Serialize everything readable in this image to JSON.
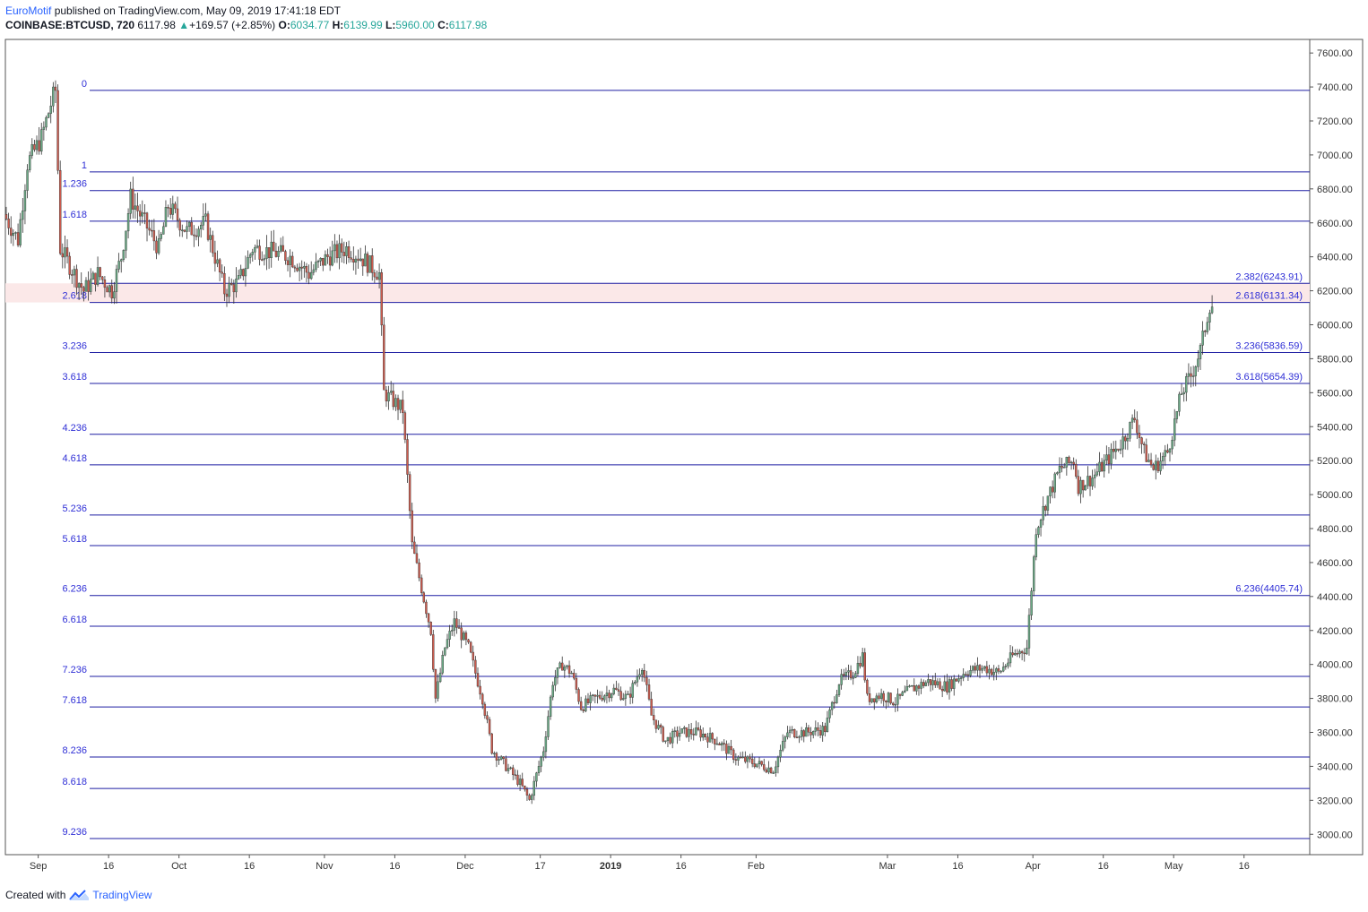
{
  "header": {
    "author": "EuroMotif",
    "published": "published on TradingView.com, May 09, 2019 17:41:18 EDT",
    "symbol": "COINBASE:BTCUSD, 720",
    "last": "6117.98",
    "change_arrow": "▲",
    "change": "+169.57 (+2.85%)",
    "o_label": "O:",
    "o_value": "6034.77",
    "h_label": "H:",
    "h_value": "6139.99",
    "l_label": "L:",
    "l_value": "5960.00",
    "c_label": "C:",
    "c_value": "6117.98"
  },
  "footer": {
    "created_with": "Created with",
    "brand": "TradingView",
    "logo_icon": "tradingview-logo-icon"
  },
  "colors": {
    "up": "#6aa985",
    "down": "#cc5b4e",
    "fib_line": "#1f1fa3",
    "fib_text": "#2f2fd6",
    "zone_fill": "#fbe8e8"
  },
  "chart_data": {
    "type": "candlestick",
    "symbol": "COINBASE:BTCUSD",
    "interval": "720",
    "y_axis": {
      "ticks": [
        3000,
        3200,
        3400,
        3600,
        3800,
        4000,
        4200,
        4400,
        4600,
        4800,
        5000,
        5200,
        5400,
        5600,
        5800,
        6000,
        6200,
        6400,
        6600,
        6800,
        7000,
        7200,
        7400,
        7600
      ],
      "tick_labels": [
        "3000.00",
        "3200.00",
        "3400.00",
        "3600.00",
        "3800.00",
        "4000.00",
        "4200.00",
        "4400.00",
        "4600.00",
        "4800.00",
        "5000.00",
        "5200.00",
        "5400.00",
        "5600.00",
        "5800.00",
        "6000.00",
        "6200.00",
        "6400.00",
        "6600.00",
        "6800.00",
        "7000.00",
        "7200.00",
        "7400.00",
        "7600.00"
      ],
      "range": [
        2880,
        7680
      ]
    },
    "x_axis": {
      "ticks": [
        {
          "label": "Sep",
          "date": "2018-09-01",
          "bold": false
        },
        {
          "label": "16",
          "date": "2018-09-16",
          "bold": false
        },
        {
          "label": "Oct",
          "date": "2018-10-01",
          "bold": false
        },
        {
          "label": "16",
          "date": "2018-10-16",
          "bold": false
        },
        {
          "label": "Nov",
          "date": "2018-11-01",
          "bold": false
        },
        {
          "label": "16",
          "date": "2018-11-16",
          "bold": false
        },
        {
          "label": "Dec",
          "date": "2018-12-01",
          "bold": false
        },
        {
          "label": "17",
          "date": "2018-12-17",
          "bold": false
        },
        {
          "label": "2019",
          "date": "2019-01-01",
          "bold": true
        },
        {
          "label": "16",
          "date": "2019-01-16",
          "bold": false
        },
        {
          "label": "Feb",
          "date": "2019-02-01",
          "bold": false
        },
        {
          "label": "Mar",
          "date": "2019-03-01",
          "bold": false
        },
        {
          "label": "16",
          "date": "2019-03-16",
          "bold": false
        },
        {
          "label": "Apr",
          "date": "2019-04-01",
          "bold": false
        },
        {
          "label": "16",
          "date": "2019-04-16",
          "bold": false
        },
        {
          "label": "May",
          "date": "2019-05-01",
          "bold": false
        },
        {
          "label": "16",
          "date": "2019-05-16",
          "bold": false
        }
      ],
      "range": [
        "2018-08-25",
        "2019-05-30"
      ]
    },
    "fib_levels": [
      {
        "label": "0",
        "price": 7380,
        "right_label": ""
      },
      {
        "label": "1",
        "price": 6900,
        "right_label": ""
      },
      {
        "label": "1.236",
        "price": 6790,
        "right_label": ""
      },
      {
        "label": "1.618",
        "price": 6610,
        "right_label": ""
      },
      {
        "label": "2.382",
        "price": 6243.91,
        "right_label": "2.382(6243.91)",
        "left_hidden": true
      },
      {
        "label": "2.618",
        "price": 6131.34,
        "right_label": "2.618(6131.34)"
      },
      {
        "label": "3.236",
        "price": 5836.59,
        "right_label": "3.236(5836.59)"
      },
      {
        "label": "3.618",
        "price": 5654.39,
        "right_label": "3.618(5654.39)"
      },
      {
        "label": "4.236",
        "price": 5355,
        "right_label": ""
      },
      {
        "label": "4.618",
        "price": 5175,
        "right_label": ""
      },
      {
        "label": "5.236",
        "price": 4880,
        "right_label": ""
      },
      {
        "label": "5.618",
        "price": 4700,
        "right_label": ""
      },
      {
        "label": "6.236",
        "price": 4405.74,
        "right_label": "6.236(4405.74)"
      },
      {
        "label": "6.618",
        "price": 4225,
        "right_label": ""
      },
      {
        "label": "7.236",
        "price": 3930,
        "right_label": ""
      },
      {
        "label": "7.618",
        "price": 3750,
        "right_label": ""
      },
      {
        "label": "8.236",
        "price": 3455,
        "right_label": ""
      },
      {
        "label": "8.618",
        "price": 3270,
        "right_label": ""
      },
      {
        "label": "9.236",
        "price": 2975,
        "right_label": ""
      }
    ],
    "highlight_zone": {
      "from": 6131.34,
      "to": 6243.91
    },
    "path_points": [
      [
        "2018-08-25",
        6650
      ],
      [
        "2018-08-28",
        6500
      ],
      [
        "2018-08-30",
        6950
      ],
      [
        "2018-09-02",
        7100
      ],
      [
        "2018-09-04",
        7300
      ],
      [
        "2018-09-05",
        7380
      ],
      [
        "2018-09-06",
        6450
      ],
      [
        "2018-09-08",
        6350
      ],
      [
        "2018-09-11",
        6200
      ],
      [
        "2018-09-14",
        6300
      ],
      [
        "2018-09-17",
        6200
      ],
      [
        "2018-09-19",
        6400
      ],
      [
        "2018-09-21",
        6750
      ],
      [
        "2018-09-24",
        6600
      ],
      [
        "2018-09-27",
        6450
      ],
      [
        "2018-09-29",
        6700
      ],
      [
        "2018-10-03",
        6550
      ],
      [
        "2018-10-07",
        6600
      ],
      [
        "2018-10-11",
        6200
      ],
      [
        "2018-10-14",
        6250
      ],
      [
        "2018-10-17",
        6450
      ],
      [
        "2018-10-21",
        6430
      ],
      [
        "2018-10-25",
        6400
      ],
      [
        "2018-10-29",
        6300
      ],
      [
        "2018-11-02",
        6400
      ],
      [
        "2018-11-06",
        6450
      ],
      [
        "2018-11-09",
        6400
      ],
      [
        "2018-11-13",
        6300
      ],
      [
        "2018-11-14",
        5600
      ],
      [
        "2018-11-16",
        5550
      ],
      [
        "2018-11-18",
        5500
      ],
      [
        "2018-11-20",
        4700
      ],
      [
        "2018-11-22",
        4450
      ],
      [
        "2018-11-24",
        4200
      ],
      [
        "2018-11-25",
        3800
      ],
      [
        "2018-11-27",
        4100
      ],
      [
        "2018-11-29",
        4250
      ],
      [
        "2018-12-02",
        4100
      ],
      [
        "2018-12-05",
        3800
      ],
      [
        "2018-12-07",
        3500
      ],
      [
        "2018-12-10",
        3400
      ],
      [
        "2018-12-13",
        3300
      ],
      [
        "2018-12-15",
        3200
      ],
      [
        "2018-12-18",
        3500
      ],
      [
        "2018-12-20",
        3900
      ],
      [
        "2018-12-22",
        4000
      ],
      [
        "2018-12-24",
        3950
      ],
      [
        "2018-12-26",
        3750
      ],
      [
        "2018-12-29",
        3800
      ],
      [
        "2019-01-02",
        3850
      ],
      [
        "2019-01-05",
        3800
      ],
      [
        "2019-01-08",
        4000
      ],
      [
        "2019-01-10",
        3700
      ],
      [
        "2019-01-13",
        3550
      ],
      [
        "2019-01-16",
        3600
      ],
      [
        "2019-01-20",
        3600
      ],
      [
        "2019-01-24",
        3550
      ],
      [
        "2019-01-28",
        3450
      ],
      [
        "2019-02-01",
        3420
      ],
      [
        "2019-02-05",
        3380
      ],
      [
        "2019-02-08",
        3600
      ],
      [
        "2019-02-12",
        3600
      ],
      [
        "2019-02-16",
        3620
      ],
      [
        "2019-02-19",
        3900
      ],
      [
        "2019-02-22",
        3950
      ],
      [
        "2019-02-24",
        4050
      ],
      [
        "2019-02-25",
        3800
      ],
      [
        "2019-02-28",
        3820
      ],
      [
        "2019-03-03",
        3780
      ],
      [
        "2019-03-06",
        3850
      ],
      [
        "2019-03-10",
        3900
      ],
      [
        "2019-03-14",
        3870
      ],
      [
        "2019-03-18",
        3960
      ],
      [
        "2019-03-22",
        3980
      ],
      [
        "2019-03-25",
        3950
      ],
      [
        "2019-03-28",
        4050
      ],
      [
        "2019-03-31",
        4100
      ],
      [
        "2019-04-02",
        4800
      ],
      [
        "2019-04-04",
        4950
      ],
      [
        "2019-04-07",
        5150
      ],
      [
        "2019-04-10",
        5200
      ],
      [
        "2019-04-11",
        5050
      ],
      [
        "2019-04-14",
        5100
      ],
      [
        "2019-04-17",
        5200
      ],
      [
        "2019-04-20",
        5300
      ],
      [
        "2019-04-23",
        5450
      ],
      [
        "2019-04-25",
        5250
      ],
      [
        "2019-04-27",
        5150
      ],
      [
        "2019-04-30",
        5250
      ],
      [
        "2019-05-03",
        5600
      ],
      [
        "2019-05-05",
        5700
      ],
      [
        "2019-05-07",
        5850
      ],
      [
        "2019-05-09",
        6117.98
      ]
    ]
  }
}
